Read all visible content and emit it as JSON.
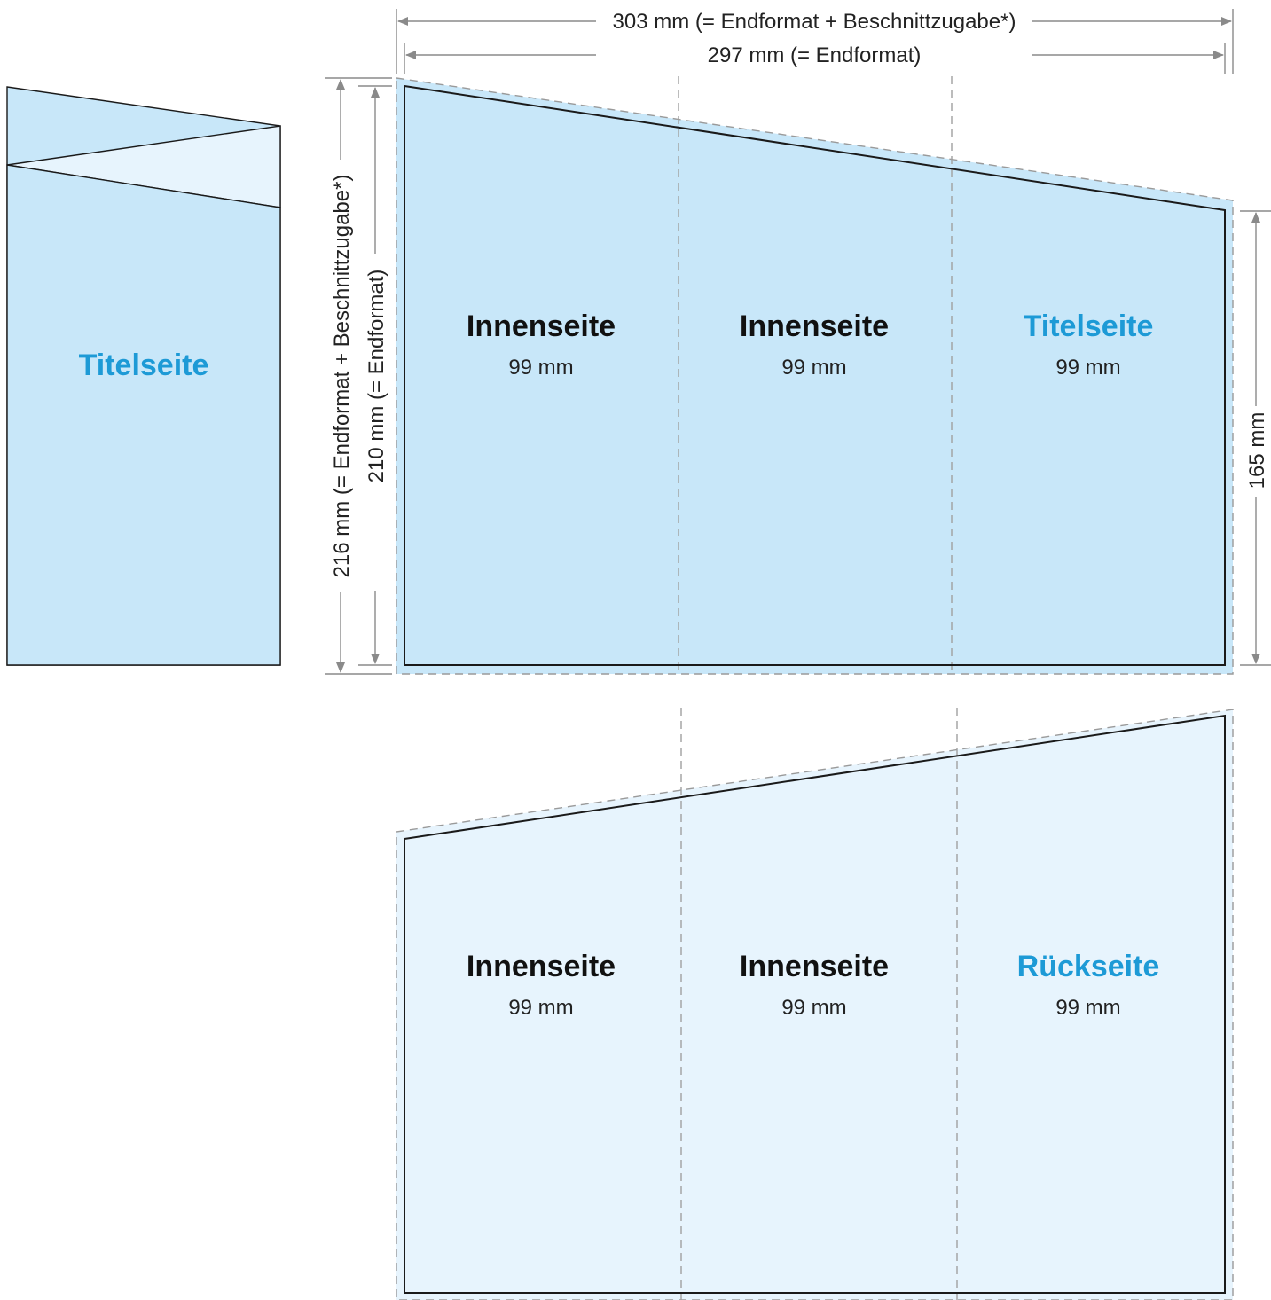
{
  "colors": {
    "panel_front": "#c8e7f9",
    "panel_back": "#e7f4fd",
    "panel_flap": "#e7f4fd",
    "accent_text": "#1d9ad6",
    "dark_text": "#111111",
    "trim_line": "#1a1a1a",
    "guide_line": "#9a9a9a"
  },
  "preview": {
    "label": "Titelseite"
  },
  "dimensions": {
    "width_bleed": "303 mm (= Endformat + Beschnittzugabe*)",
    "width_final": "297 mm (= Endformat)",
    "height_bleed": "216 mm (= Endformat + Beschnittzugabe*)",
    "height_final": "210 mm (= Endformat)",
    "height_right": "165 mm"
  },
  "front_sheet": {
    "panels": [
      {
        "title": "Innenseite",
        "size": "99 mm",
        "accent": false
      },
      {
        "title": "Innenseite",
        "size": "99 mm",
        "accent": false
      },
      {
        "title": "Titelseite",
        "size": "99 mm",
        "accent": true
      }
    ]
  },
  "back_sheet": {
    "panels": [
      {
        "title": "Innenseite",
        "size": "99 mm",
        "accent": false
      },
      {
        "title": "Innenseite",
        "size": "99 mm",
        "accent": false
      },
      {
        "title": "Rückseite",
        "size": "99 mm",
        "accent": true
      }
    ]
  }
}
